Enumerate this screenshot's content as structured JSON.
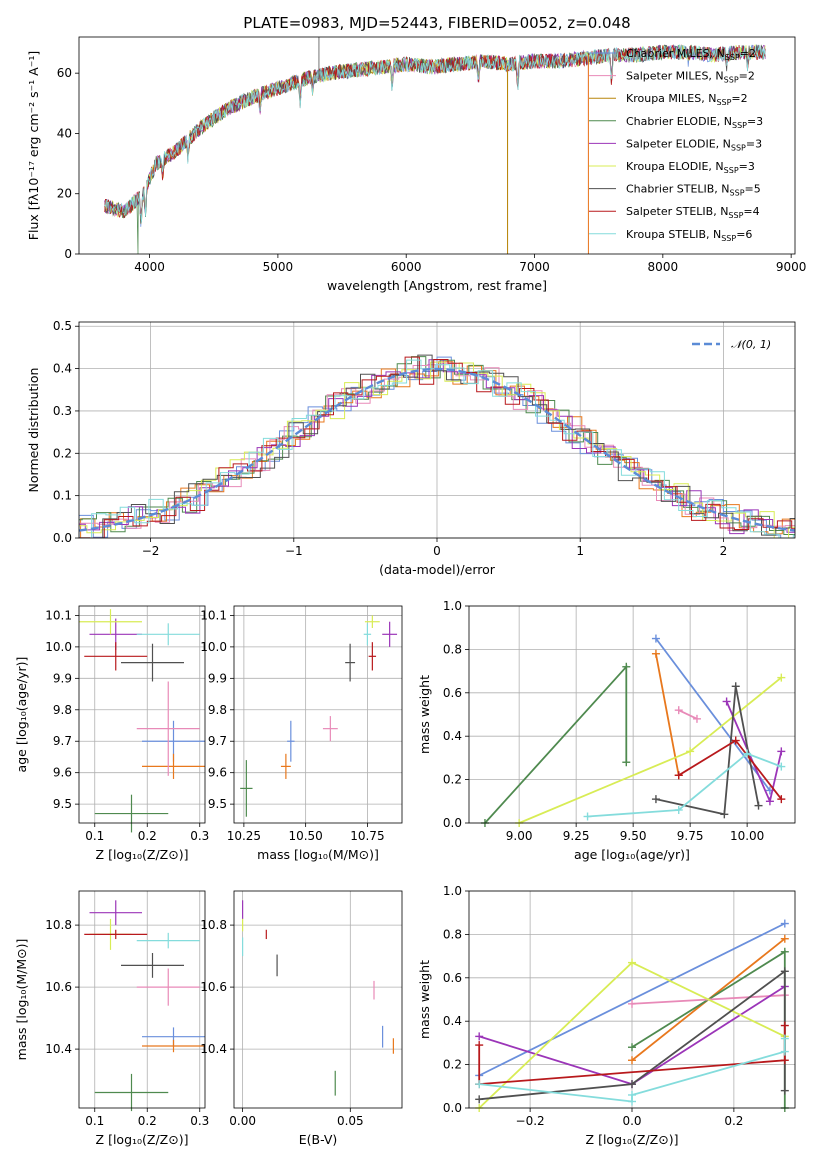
{
  "palette": [
    "#6a8fdc",
    "#e8781d",
    "#4f8a4f",
    "#e88ab8",
    "#9b35b8",
    "#d8ec55",
    "#505050",
    "#b8191c",
    "#84dcdc"
  ],
  "chart_data": [
    {
      "type": "line",
      "title": "PLATE=0983, MJD=52443, FIBERID=0052, z=0.048",
      "xlabel": "wavelength [Angstrom, rest frame]",
      "ylabel": "Flux [fλ10⁻¹⁷ erg cm⁻² s⁻¹ A⁻¹]",
      "xlim": [
        3450,
        9030
      ],
      "ylim": [
        0,
        72
      ],
      "xticks": [
        "4000",
        "5000",
        "6000",
        "7000",
        "8000",
        "9000"
      ],
      "xtick_values": [
        4000,
        5000,
        6000,
        7000,
        8000,
        9000
      ],
      "yticks": [
        "0",
        "20",
        "40",
        "60"
      ],
      "ytick_values": [
        0,
        20,
        40,
        60
      ],
      "legend_position": "top-right",
      "series": [
        {
          "name": "Chabrier MILES, N",
          "sub": "SSP",
          "val": "=2",
          "color": "#6a8fdc"
        },
        {
          "name": "Salpeter MILES, N",
          "sub": "SSP",
          "val": "=2",
          "color": "#e88ab8"
        },
        {
          "name": "Kroupa MILES, N",
          "sub": "SSP",
          "val": "=2",
          "color": "#b8860b"
        },
        {
          "name": "Chabrier ELODIE, N",
          "sub": "SSP",
          "val": "=3",
          "color": "#4f8a4f"
        },
        {
          "name": "Salpeter ELODIE, N",
          "sub": "SSP",
          "val": "=3",
          "color": "#9b35b8"
        },
        {
          "name": "Kroupa ELODIE, N",
          "sub": "SSP",
          "val": "=3",
          "color": "#d8ec55"
        },
        {
          "name": "Chabrier STELIB, N",
          "sub": "SSP",
          "val": "=5",
          "color": "#505050"
        },
        {
          "name": "Salpeter STELIB, N",
          "sub": "SSP",
          "val": "=4",
          "color": "#b8191c"
        },
        {
          "name": "Kroupa STELIB, N",
          "sub": "SSP",
          "val": "=6",
          "color": "#84dcdc"
        }
      ],
      "continuum": {
        "x": [
          3650,
          3800,
          3950,
          4050,
          4200,
          4400,
          4600,
          4800,
          5000,
          5200,
          5400,
          5600,
          5800,
          6000,
          6200,
          6400,
          6600,
          6800,
          7000,
          7200,
          7400,
          7600,
          7800,
          8000,
          8200,
          8400,
          8600,
          8800
        ],
        "y": [
          16,
          14,
          20,
          30,
          34,
          42,
          48,
          52,
          55,
          58,
          60,
          61,
          62,
          63,
          62,
          63,
          64,
          63,
          64,
          64,
          65,
          66,
          66,
          67,
          67,
          66,
          67,
          67
        ]
      },
      "dropouts": [
        3910,
        6790,
        7420
      ],
      "spike": 5320
    },
    {
      "type": "bar",
      "xlabel": "(data-model)/error",
      "ylabel": "Normed distribution",
      "xlim": [
        -2.5,
        2.5
      ],
      "ylim": [
        0,
        0.51
      ],
      "xticks": [
        "−2",
        "−1",
        "0",
        "1",
        "2"
      ],
      "xtick_values": [
        -2,
        -1,
        0,
        1,
        2
      ],
      "yticks": [
        "0.0",
        "0.1",
        "0.2",
        "0.3",
        "0.4",
        "0.5"
      ],
      "ytick_values": [
        0,
        0.1,
        0.2,
        0.3,
        0.4,
        0.5
      ],
      "legend": "𝒩(0, 1)",
      "legend_position": "top-right",
      "gaussian": {
        "mu": 0,
        "sigma": 1,
        "color": "#5b8bd6"
      }
    },
    {
      "type": "scatter",
      "xlabel": "Z [log₁₀(Z/Z⊙)]",
      "ylabel": "age  [log₁₀(age/yr)]",
      "xlim": [
        0.07,
        0.31
      ],
      "ylim": [
        9.44,
        10.13
      ],
      "xticks": [
        "0.1",
        "0.2",
        "0.3"
      ],
      "xtick_values": [
        0.1,
        0.2,
        0.3
      ],
      "yticks": [
        "9.5",
        "9.6",
        "9.7",
        "9.8",
        "9.9",
        "10.0",
        "10.1"
      ],
      "ytick_values": [
        9.5,
        9.6,
        9.7,
        9.8,
        9.9,
        10.0,
        10.1
      ],
      "points": [
        {
          "x": 0.25,
          "y": 9.7,
          "ex": 0.06,
          "ey": 0.065,
          "color": "#6a8fdc"
        },
        {
          "x": 0.25,
          "y": 9.62,
          "ex": 0.06,
          "ey": 0.04,
          "color": "#e8781d"
        },
        {
          "x": 0.17,
          "y": 9.47,
          "ex": 0.07,
          "ey": 0.06,
          "color": "#4f8a4f"
        },
        {
          "x": 0.24,
          "y": 9.74,
          "ex": 0.06,
          "ey": 0.15,
          "color": "#e88ab8"
        },
        {
          "x": 0.14,
          "y": 10.04,
          "ex": 0.05,
          "ey": 0.05,
          "color": "#9b35b8"
        },
        {
          "x": 0.13,
          "y": 10.08,
          "ex": 0.06,
          "ey": 0.04,
          "color": "#d8ec55"
        },
        {
          "x": 0.21,
          "y": 9.95,
          "ex": 0.06,
          "ey": 0.06,
          "color": "#505050"
        },
        {
          "x": 0.14,
          "y": 9.97,
          "ex": 0.06,
          "ey": 0.045,
          "color": "#b8191c"
        },
        {
          "x": 0.24,
          "y": 10.04,
          "ex": 0.06,
          "ey": 0.035,
          "color": "#84dcdc"
        }
      ]
    },
    {
      "type": "scatter",
      "xlabel": "mass [log₁₀(M/M⊙)]",
      "ylabel": "",
      "xlim": [
        10.21,
        10.89
      ],
      "ylim": [
        9.44,
        10.13
      ],
      "xticks": [
        "10.25",
        "10.50",
        "10.75"
      ],
      "xtick_values": [
        10.25,
        10.5,
        10.75
      ],
      "yticks": [
        "9.5",
        "9.6",
        "9.7",
        "9.8",
        "9.9",
        "10.0",
        "10.1"
      ],
      "ytick_values": [
        9.5,
        9.6,
        9.7,
        9.8,
        9.9,
        10.0,
        10.1
      ],
      "points": [
        {
          "x": 10.44,
          "y": 9.7,
          "ex": 0.015,
          "ey": 0.065,
          "color": "#6a8fdc"
        },
        {
          "x": 10.42,
          "y": 9.62,
          "ex": 0.02,
          "ey": 0.04,
          "color": "#e8781d"
        },
        {
          "x": 10.26,
          "y": 9.55,
          "ex": 0.025,
          "ey": 0.09,
          "color": "#4f8a4f"
        },
        {
          "x": 10.6,
          "y": 9.74,
          "ex": 0.03,
          "ey": 0.04,
          "color": "#e88ab8"
        },
        {
          "x": 10.84,
          "y": 10.04,
          "ex": 0.03,
          "ey": 0.04,
          "color": "#9b35b8"
        },
        {
          "x": 10.77,
          "y": 10.08,
          "ex": 0.03,
          "ey": 0.02,
          "color": "#d8ec55"
        },
        {
          "x": 10.68,
          "y": 9.95,
          "ex": 0.02,
          "ey": 0.06,
          "color": "#505050"
        },
        {
          "x": 10.77,
          "y": 9.97,
          "ex": 0.015,
          "ey": 0.045,
          "color": "#b8191c"
        },
        {
          "x": 10.75,
          "y": 10.04,
          "ex": 0.015,
          "ey": 0.035,
          "color": "#84dcdc"
        }
      ]
    },
    {
      "type": "line",
      "xlabel": "age  [log₁₀(age/yr)]",
      "ylabel": "mass weight",
      "xlim": [
        8.78,
        10.21
      ],
      "ylim": [
        0,
        1.0
      ],
      "xticks": [
        "9.00",
        "9.25",
        "9.50",
        "9.75",
        "10.00"
      ],
      "xtick_values": [
        9.0,
        9.25,
        9.5,
        9.75,
        10.0
      ],
      "yticks": [
        "0.0",
        "0.2",
        "0.4",
        "0.6",
        "0.8",
        "1.0"
      ],
      "ytick_values": [
        0,
        0.2,
        0.4,
        0.6,
        0.8,
        1.0
      ],
      "series": [
        {
          "color": "#6a8fdc",
          "points": [
            [
              9.6,
              0.85
            ],
            [
              10.1,
              0.15
            ]
          ]
        },
        {
          "color": "#e8781d",
          "points": [
            [
              9.6,
              0.78
            ],
            [
              9.7,
              0.22
            ]
          ]
        },
        {
          "color": "#4f8a4f",
          "points": [
            [
              8.85,
              0.0
            ],
            [
              9.47,
              0.72
            ],
            [
              9.47,
              0.28
            ]
          ]
        },
        {
          "color": "#e88ab8",
          "points": [
            [
              9.7,
              0.52
            ],
            [
              9.78,
              0.48
            ]
          ]
        },
        {
          "color": "#9b35b8",
          "points": [
            [
              9.91,
              0.56
            ],
            [
              10.1,
              0.1
            ],
            [
              10.15,
              0.33
            ]
          ]
        },
        {
          "color": "#d8ec55",
          "points": [
            [
              9.0,
              0.0
            ],
            [
              9.75,
              0.33
            ],
            [
              10.15,
              0.67
            ]
          ]
        },
        {
          "color": "#505050",
          "points": [
            [
              9.6,
              0.11
            ],
            [
              9.9,
              0.04
            ],
            [
              9.95,
              0.63
            ],
            [
              10.05,
              0.08
            ]
          ]
        },
        {
          "color": "#b8191c",
          "points": [
            [
              9.7,
              0.22
            ],
            [
              9.95,
              0.38
            ],
            [
              10.15,
              0.11
            ]
          ]
        },
        {
          "color": "#84dcdc",
          "points": [
            [
              9.3,
              0.03
            ],
            [
              9.7,
              0.06
            ],
            [
              10.0,
              0.32
            ],
            [
              10.15,
              0.26
            ]
          ]
        }
      ]
    },
    {
      "type": "scatter",
      "xlabel": "Z [log₁₀(Z/Z⊙)]",
      "ylabel": "mass [log₁₀(M/M⊙)]",
      "xlim": [
        0.07,
        0.31
      ],
      "ylim": [
        10.21,
        10.91
      ],
      "xticks": [
        "0.1",
        "0.2",
        "0.3"
      ],
      "xtick_values": [
        0.1,
        0.2,
        0.3
      ],
      "yticks": [
        "10.4",
        "10.6",
        "10.8"
      ],
      "ytick_values": [
        10.4,
        10.6,
        10.8
      ],
      "points": [
        {
          "x": 0.25,
          "y": 10.44,
          "ex": 0.06,
          "ey": 0.03,
          "color": "#6a8fdc"
        },
        {
          "x": 0.25,
          "y": 10.41,
          "ex": 0.06,
          "ey": 0.02,
          "color": "#e8781d"
        },
        {
          "x": 0.17,
          "y": 10.26,
          "ex": 0.07,
          "ey": 0.06,
          "color": "#4f8a4f"
        },
        {
          "x": 0.24,
          "y": 10.6,
          "ex": 0.06,
          "ey": 0.06,
          "color": "#e88ab8"
        },
        {
          "x": 0.14,
          "y": 10.84,
          "ex": 0.05,
          "ey": 0.04,
          "color": "#9b35b8"
        },
        {
          "x": 0.13,
          "y": 10.77,
          "ex": 0.04,
          "ey": 0.05,
          "color": "#d8ec55"
        },
        {
          "x": 0.21,
          "y": 10.67,
          "ex": 0.06,
          "ey": 0.04,
          "color": "#505050"
        },
        {
          "x": 0.14,
          "y": 10.77,
          "ex": 0.06,
          "ey": 0.015,
          "color": "#b8191c"
        },
        {
          "x": 0.24,
          "y": 10.75,
          "ex": 0.06,
          "ey": 0.025,
          "color": "#84dcdc"
        }
      ]
    },
    {
      "type": "scatter",
      "xlabel": "E(B-V)",
      "ylabel": "",
      "xlim": [
        -0.004,
        0.074
      ],
      "ylim": [
        10.21,
        10.91
      ],
      "xticks": [
        "0.00",
        "0.05"
      ],
      "xtick_values": [
        0.0,
        0.05
      ],
      "yticks": [
        "10.4",
        "10.6",
        "10.8"
      ],
      "ytick_values": [
        10.4,
        10.6,
        10.8
      ],
      "points": [
        {
          "x": 0.065,
          "y": 10.44,
          "ex": 0,
          "ey": 0.035,
          "color": "#6a8fdc"
        },
        {
          "x": 0.07,
          "y": 10.41,
          "ex": 0,
          "ey": 0.025,
          "color": "#e8781d"
        },
        {
          "x": 0.043,
          "y": 10.29,
          "ex": 0,
          "ey": 0.04,
          "color": "#4f8a4f"
        },
        {
          "x": 0.061,
          "y": 10.59,
          "ex": 0,
          "ey": 0.03,
          "color": "#e88ab8"
        },
        {
          "x": 0.0,
          "y": 10.85,
          "ex": 0,
          "ey": 0.03,
          "color": "#9b35b8"
        },
        {
          "x": 0.0,
          "y": 10.8,
          "ex": 0,
          "ey": 0.02,
          "color": "#d8ec55"
        },
        {
          "x": 0.016,
          "y": 10.67,
          "ex": 0,
          "ey": 0.035,
          "color": "#505050"
        },
        {
          "x": 0.011,
          "y": 10.77,
          "ex": 0,
          "ey": 0.015,
          "color": "#b8191c"
        },
        {
          "x": 0.0,
          "y": 10.73,
          "ex": 0,
          "ey": 0.03,
          "color": "#84dcdc"
        }
      ]
    },
    {
      "type": "line",
      "xlabel": "Z [log₁₀(Z/Z⊙)]",
      "ylabel": "mass weight",
      "xlim": [
        -0.32,
        0.32
      ],
      "ylim": [
        0,
        1.0
      ],
      "xticks": [
        "−0.2",
        "0.0",
        "0.2"
      ],
      "xtick_values": [
        -0.2,
        0.0,
        0.2
      ],
      "yticks": [
        "0.0",
        "0.2",
        "0.4",
        "0.6",
        "0.8",
        "1.0"
      ],
      "ytick_values": [
        0,
        0.2,
        0.4,
        0.6,
        0.8,
        1.0
      ],
      "series": [
        {
          "color": "#6a8fdc",
          "points": [
            [
              -0.3,
              0.15
            ],
            [
              0.3,
              0.85
            ]
          ]
        },
        {
          "color": "#e8781d",
          "points": [
            [
              0.0,
              0.22
            ],
            [
              0.3,
              0.78
            ]
          ]
        },
        {
          "color": "#4f8a4f",
          "points": [
            [
              0.0,
              0.28
            ],
            [
              0.3,
              0.72
            ],
            [
              0.3,
              0.0
            ]
          ]
        },
        {
          "color": "#e88ab8",
          "points": [
            [
              0.0,
              0.48
            ],
            [
              0.3,
              0.52
            ]
          ]
        },
        {
          "color": "#9b35b8",
          "points": [
            [
              -0.3,
              0.33
            ],
            [
              0.0,
              0.11
            ],
            [
              0.3,
              0.56
            ]
          ]
        },
        {
          "color": "#d8ec55",
          "points": [
            [
              -0.3,
              0.0
            ],
            [
              0.0,
              0.67
            ],
            [
              0.3,
              0.33
            ]
          ]
        },
        {
          "color": "#505050",
          "points": [
            [
              -0.3,
              0.04
            ],
            [
              0.0,
              0.11
            ],
            [
              0.3,
              0.63
            ],
            [
              0.3,
              0.08
            ]
          ]
        },
        {
          "color": "#b8191c",
          "points": [
            [
              -0.3,
              0.29
            ],
            [
              -0.3,
              0.11
            ],
            [
              0.3,
              0.22
            ],
            [
              0.3,
              0.38
            ]
          ]
        },
        {
          "color": "#84dcdc",
          "points": [
            [
              -0.3,
              0.11
            ],
            [
              0.0,
              0.03
            ],
            [
              0.0,
              0.06
            ],
            [
              0.3,
              0.26
            ],
            [
              0.3,
              0.32
            ]
          ]
        }
      ]
    }
  ]
}
